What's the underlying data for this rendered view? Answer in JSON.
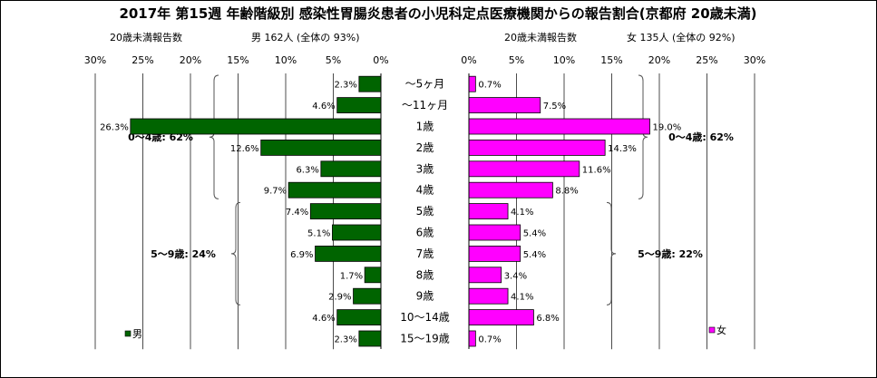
{
  "title": "2017年 第15週 年齢階級別 感染性胃腸炎患者の小児科定点医療機関からの報告割合(京都府 20歳未満)",
  "chart_data": {
    "type": "bar",
    "orientation": "horizontal-butterfly",
    "categories": [
      "〜5ヶ月",
      "〜11ヶ月",
      "1歳",
      "2歳",
      "3歳",
      "4歳",
      "5歳",
      "6歳",
      "7歳",
      "8歳",
      "9歳",
      "10〜14歳",
      "15〜19歳"
    ],
    "xlim": [
      0,
      30
    ],
    "grid": true,
    "series": [
      {
        "name": "男",
        "side": "left",
        "color": "#006400",
        "values": [
          2.3,
          4.6,
          26.3,
          12.6,
          6.3,
          9.7,
          7.4,
          5.1,
          6.9,
          1.7,
          2.9,
          4.6,
          2.3
        ],
        "labels": [
          "2.3%",
          "4.6%",
          "26.3%",
          "12.6%",
          "6.3%",
          "9.7%",
          "7.4%",
          "5.1%",
          "6.9%",
          "1.7%",
          "2.9%",
          "4.6%",
          "2.3%"
        ],
        "ticks": [
          "30%",
          "25%",
          "20%",
          "15%",
          "10%",
          "5%",
          "0%"
        ],
        "header_left": "20歳未満報告数",
        "header_right": "男 162人 (全体の 93%)",
        "groups": [
          {
            "label": "0〜4歳: 62%",
            "from": 0,
            "to": 5
          },
          {
            "label": "5〜9歳: 24%",
            "from": 6,
            "to": 10
          }
        ],
        "legend_position": "bottom-left"
      },
      {
        "name": "女",
        "side": "right",
        "color": "#ff00ff",
        "values": [
          0.7,
          7.5,
          19.0,
          14.3,
          11.6,
          8.8,
          4.1,
          5.4,
          5.4,
          3.4,
          4.1,
          6.8,
          0.7
        ],
        "labels": [
          "0.7%",
          "7.5%",
          "19.0%",
          "14.3%",
          "11.6%",
          "8.8%",
          "4.1%",
          "5.4%",
          "5.4%",
          "3.4%",
          "4.1%",
          "6.8%",
          "0.7%"
        ],
        "ticks": [
          "0%",
          "5%",
          "10%",
          "15%",
          "20%",
          "25%",
          "30%"
        ],
        "header_left": "20歳未満報告数",
        "header_right": "女 135人 (全体の 92%)",
        "groups": [
          {
            "label": "0〜4歳: 62%",
            "from": 0,
            "to": 5
          },
          {
            "label": "5〜9歳: 22%",
            "from": 6,
            "to": 10
          }
        ],
        "legend_position": "bottom-right"
      }
    ]
  }
}
